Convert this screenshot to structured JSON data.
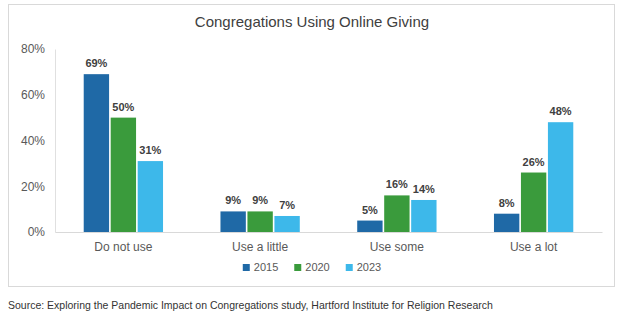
{
  "chart_data": {
    "type": "bar",
    "title": "Congregations Using Online Giving",
    "categories": [
      "Do not use",
      "Use a little",
      "Use some",
      "Use a lot"
    ],
    "series": [
      {
        "name": "2015",
        "color": "#1f69a6",
        "values": [
          69,
          9,
          5,
          8
        ],
        "value_labels": [
          "69%",
          "9%",
          "5%",
          "8%"
        ]
      },
      {
        "name": "2020",
        "color": "#3a9b3c",
        "values": [
          50,
          9,
          16,
          26
        ],
        "value_labels": [
          "50%",
          "9%",
          "16%",
          "26%"
        ]
      },
      {
        "name": "2023",
        "color": "#3db8ea",
        "values": [
          31,
          7,
          14,
          48
        ],
        "value_labels": [
          "31%",
          "7%",
          "14%",
          "48%"
        ]
      }
    ],
    "ylim": [
      0,
      80
    ],
    "yticks": [
      {
        "value": 0,
        "label": "0%"
      },
      {
        "value": 20,
        "label": "20%"
      },
      {
        "value": 40,
        "label": "40%"
      },
      {
        "value": 60,
        "label": "60%"
      },
      {
        "value": 80,
        "label": "80%"
      }
    ],
    "grid": false,
    "legend": "bottom",
    "data_labels": true,
    "annotations": [
      "Source: Exploring the Pandemic Impact on Congregations study, Hartford Institute for Religion Research"
    ]
  }
}
